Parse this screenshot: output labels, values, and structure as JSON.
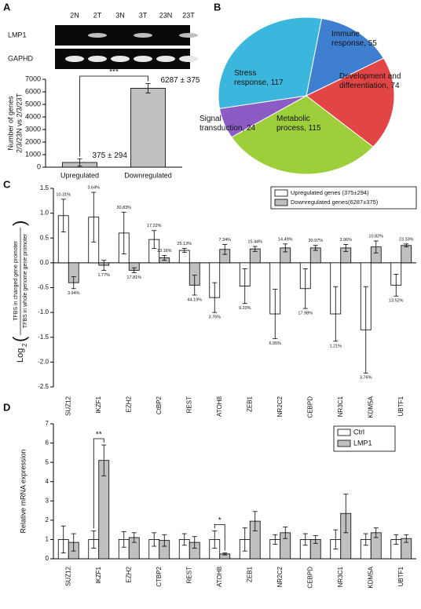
{
  "chart_data": [
    {
      "type": "bar",
      "panel": "A",
      "gel": {
        "lanes": [
          "2N",
          "2T",
          "3N",
          "3T",
          "23N",
          "23T"
        ],
        "rows": [
          "LMP1",
          "GAPHD"
        ]
      },
      "ylabel": [
        "Number of genes",
        "2/3/23N vs 2/3/23T"
      ],
      "categories": [
        "Upregulated",
        "Downregulated"
      ],
      "values": [
        375,
        6287
      ],
      "errors": [
        294,
        375
      ],
      "value_labels": [
        "375 ± 294",
        "6287 ± 375"
      ],
      "color": "#c0c0c0",
      "annotation": "***",
      "ylim": [
        0,
        7000
      ],
      "yticks": [
        0,
        1000,
        2000,
        3000,
        4000,
        5000,
        6000,
        7000
      ]
    },
    {
      "type": "pie",
      "panel": "B",
      "values": [
        55,
        74,
        115,
        24,
        117
      ],
      "value_labels": [
        "Immune\nresponse, 55",
        "Development and\ndifferentiation, 74",
        "Metabolic\nprocess, 115",
        "Signal\ntransduction, 24",
        "Stress\nresponse, 117"
      ],
      "colors": [
        "#3f7fcf",
        "#e24545",
        "#9ccf3a",
        "#8a5cc4",
        "#3bb6dc"
      ]
    },
    {
      "type": "bar",
      "panel": "C",
      "ylabel": {
        "log": "Log",
        "base": "2",
        "open": "(",
        "numerator": "TFBS in changed gene promoter",
        "denominator": "TFBS in whole genome gene promoter",
        "close": ")"
      },
      "categories": [
        "SUZ12",
        "IKZF1",
        "EZH2",
        "CtBP2",
        "REST",
        "ATOH8",
        "ZEB1",
        "NR2C2",
        "CEBPD",
        "NR3C1",
        "KDM5A",
        "UBTF1"
      ],
      "series": [
        {
          "name": "Upregulated genes (375±294)",
          "color": "#ffffff",
          "values": [
            0.95,
            0.92,
            0.6,
            0.47,
            0.25,
            -0.7,
            -0.47,
            -1.03,
            -0.52,
            -1.03,
            -1.35,
            -0.45
          ],
          "errors": [
            0.33,
            0.5,
            0.42,
            0.18,
            0.04,
            0.3,
            0.35,
            0.5,
            0.4,
            0.55,
            0.87,
            0.22
          ],
          "value_labels": [
            "10.31%",
            "3.64%",
            "30.83%",
            "17.22%",
            "25.13%",
            "3.76%",
            "9.20%",
            "6.95%",
            "17.98%",
            "1.21%",
            "3.76%",
            "13.52%"
          ]
        },
        {
          "name": "Downregulated genes(6287±375)",
          "color": "#c0c0c0",
          "values": [
            -0.4,
            -0.05,
            -0.15,
            0.1,
            -0.45,
            0.27,
            0.28,
            0.3,
            0.3,
            0.3,
            0.32,
            0.35
          ],
          "errors": [
            0.12,
            0.1,
            0.05,
            0.05,
            0.2,
            0.1,
            0.05,
            0.08,
            0.05,
            0.07,
            0.12,
            0.03
          ],
          "value_labels": [
            "3.94%",
            "1.77%",
            "17.81%",
            "13.16%",
            "44.19%",
            "7.34%",
            "15.44%",
            "14.49%",
            "30.97%",
            "3.96%",
            "10.82%",
            "23.33%"
          ]
        }
      ],
      "ylim": [
        -2.5,
        1.5
      ],
      "yticks": [
        1.5,
        {
          "value": 1,
          "label": "1.0"
        },
        0.5,
        {
          "value": 0,
          "label": "0.0"
        },
        -0.5,
        {
          "value": -1,
          "label": "-1.0"
        },
        -1.5,
        {
          "value": -2,
          "label": "-2.0"
        },
        -2.5
      ]
    },
    {
      "type": "bar",
      "panel": "D",
      "ylabel": "Relative mRNA expression",
      "categories": [
        "SUZ12",
        "IKZF1",
        "EZH2",
        "CTBP2",
        "REST",
        "ATOH8",
        "ZEB1",
        "NR2C2",
        "CEBPD",
        "NR3C1",
        "KDM5A",
        "UBTF1"
      ],
      "series": [
        {
          "name": "Ctrl",
          "color": "#ffffff",
          "values": [
            1,
            1,
            1,
            1,
            1,
            1,
            1,
            1,
            1,
            1,
            1,
            1
          ],
          "errors": [
            0.7,
            0.45,
            0.4,
            0.35,
            0.3,
            0.45,
            0.6,
            0.25,
            0.3,
            0.5,
            0.3,
            0.25
          ]
        },
        {
          "name": "LMP1",
          "color": "#c0c0c0",
          "values": [
            0.85,
            5.1,
            1.1,
            0.95,
            0.85,
            0.25,
            1.95,
            1.35,
            1,
            2.35,
            1.35,
            1.05
          ],
          "errors": [
            0.45,
            0.8,
            0.25,
            0.3,
            0.3,
            0.05,
            0.5,
            0.3,
            0.2,
            1,
            0.25,
            0.2
          ]
        }
      ],
      "annotations": [
        "**",
        "*"
      ],
      "ylim": [
        0,
        7
      ],
      "yticks": [
        0,
        1,
        2,
        3,
        4,
        5,
        6,
        7
      ]
    }
  ]
}
